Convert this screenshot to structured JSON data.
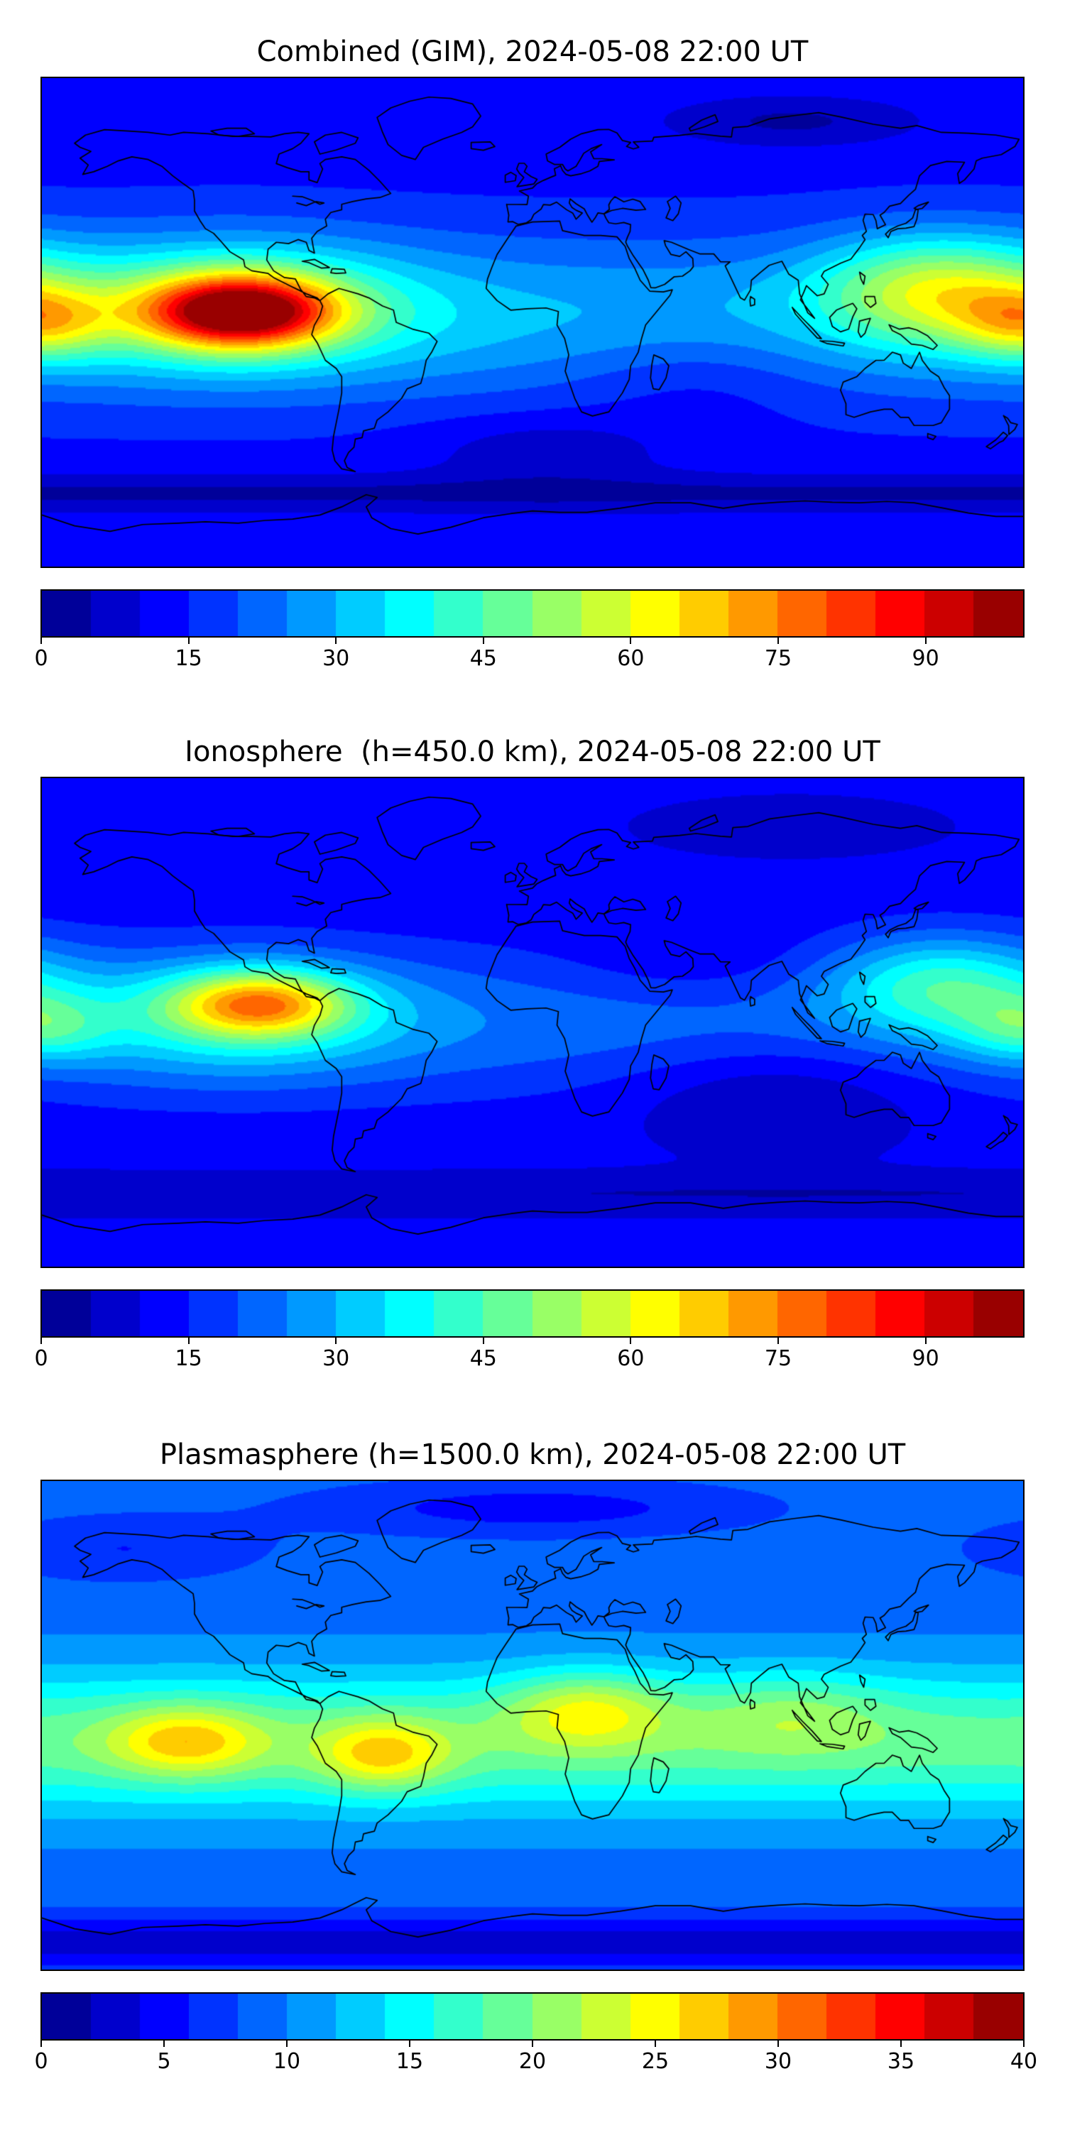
{
  "chart_data": [
    {
      "type": "heatmap",
      "title": "Combined (GIM), 2024-05-08 22:00 UT",
      "projection": "equirectangular",
      "lon_range": [
        -180,
        180
      ],
      "lat_range": [
        -90,
        90
      ],
      "coastlines": true,
      "colormap": "jet",
      "vmin": 0,
      "vmax": 100,
      "levels": 20,
      "colorbar": {
        "orientation": "horizontal",
        "ticks": [
          0,
          15,
          30,
          45,
          60,
          75,
          90
        ],
        "labels": [
          "0",
          "15",
          "30",
          "45",
          "60",
          "75",
          "90"
        ]
      },
      "peak": {
        "lon": -107,
        "lat": 4,
        "value": 100
      },
      "field_model": {
        "base": 13,
        "bands": [
          {
            "lat": 2,
            "sigma": 30,
            "amp": 17
          },
          {
            "lat": -63,
            "sigma": 7,
            "amp": -9
          }
        ],
        "blobs": [
          {
            "lon": -107,
            "lat": 4,
            "slon": 34,
            "slat": 13,
            "amp": 62
          },
          {
            "lon": -110,
            "lat": 6,
            "slon": 65,
            "slat": 24,
            "amp": 24
          },
          {
            "lon": 148,
            "lat": 12,
            "slon": 42,
            "slat": 20,
            "amp": 32
          },
          {
            "lon": 180,
            "lat": 0,
            "slon": 24,
            "slat": 13,
            "amp": 24
          },
          {
            "lon": 95,
            "lat": 74,
            "slon": 45,
            "slat": 9,
            "amp": -9
          },
          {
            "lon": 5,
            "lat": -47,
            "slon": 45,
            "slat": 13,
            "amp": -7
          },
          {
            "lon": 60,
            "lat": -20,
            "slon": 45,
            "slat": 18,
            "amp": -6
          }
        ]
      }
    },
    {
      "type": "heatmap",
      "title": "Ionosphere  (h=450.0 km), 2024-05-08 22:00 UT",
      "projection": "equirectangular",
      "lon_range": [
        -180,
        180
      ],
      "lat_range": [
        -90,
        90
      ],
      "coastlines": true,
      "colormap": "jet",
      "vmin": 0,
      "vmax": 100,
      "levels": 20,
      "colorbar": {
        "orientation": "horizontal",
        "ticks": [
          0,
          15,
          30,
          45,
          60,
          75,
          90
        ],
        "labels": [
          "0",
          "15",
          "30",
          "45",
          "60",
          "75",
          "90"
        ]
      },
      "peak": {
        "lon": -100,
        "lat": 7,
        "value": 81
      },
      "field_model": {
        "base": 11,
        "bands": [
          {
            "lat": 0,
            "sigma": 27,
            "amp": 12
          },
          {
            "lat": -63,
            "sigma": 7,
            "amp": -6
          }
        ],
        "blobs": [
          {
            "lon": -100,
            "lat": 7,
            "slon": 32,
            "slat": 12,
            "amp": 40
          },
          {
            "lon": -108,
            "lat": 2,
            "slon": 62,
            "slat": 22,
            "amp": 18
          },
          {
            "lon": 150,
            "lat": 14,
            "slon": 40,
            "slat": 18,
            "amp": 24
          },
          {
            "lon": 180,
            "lat": -2,
            "slon": 24,
            "slat": 12,
            "amp": 16
          },
          {
            "lon": 90,
            "lat": -25,
            "slon": 55,
            "slat": 20,
            "amp": -9
          },
          {
            "lon": 60,
            "lat": 20,
            "slon": 50,
            "slat": 15,
            "amp": -5
          },
          {
            "lon": 95,
            "lat": 72,
            "slon": 45,
            "slat": 9,
            "amp": -6
          }
        ]
      }
    },
    {
      "type": "heatmap",
      "title": "Plasmasphere (h=1500.0 km), 2024-05-08 22:00 UT",
      "projection": "equirectangular",
      "lon_range": [
        -180,
        180
      ],
      "lat_range": [
        -90,
        90
      ],
      "coastlines": true,
      "colormap": "jet",
      "vmin": 0,
      "vmax": 40,
      "levels": 20,
      "colorbar": {
        "orientation": "horizontal",
        "ticks": [
          0,
          5,
          10,
          15,
          20,
          25,
          30,
          35,
          40
        ],
        "labels": [
          "0",
          "5",
          "10",
          "15",
          "20",
          "25",
          "30",
          "35",
          "40"
        ]
      },
      "peak": {
        "lon": -127,
        "lat": -6,
        "value": 28
      },
      "field_model": {
        "base": 9,
        "bands": [
          {
            "lat": -6,
            "sigma": 26,
            "amp": 10
          },
          {
            "lat": -80,
            "sigma": 10,
            "amp": -6
          }
        ],
        "blobs": [
          {
            "lon": -127,
            "lat": -6,
            "slon": 28,
            "slat": 13,
            "amp": 9
          },
          {
            "lon": -55,
            "lat": -11,
            "slon": 24,
            "slat": 13,
            "amp": 9
          },
          {
            "lon": 20,
            "lat": 6,
            "slon": 30,
            "slat": 14,
            "amp": 8
          },
          {
            "lon": 95,
            "lat": 5,
            "slon": 35,
            "slat": 15,
            "amp": 4
          },
          {
            "lon": 0,
            "lat": 80,
            "slon": 80,
            "slat": 10,
            "amp": -4
          },
          {
            "lon": -150,
            "lat": 65,
            "slon": 50,
            "slat": 12,
            "amp": -3
          }
        ]
      }
    }
  ],
  "style": {
    "background": "#ffffff",
    "frame_color": "#000000",
    "coastline_color": "#000000"
  }
}
